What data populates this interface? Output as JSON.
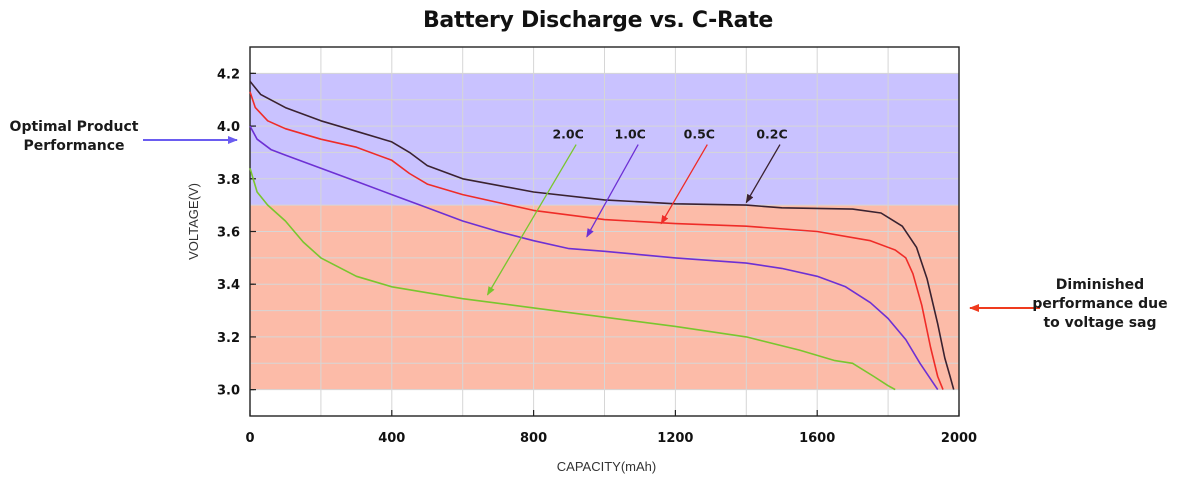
{
  "chart_data": {
    "type": "line",
    "title": "Battery Discharge vs. C-Rate",
    "xlabel": "CAPACITY(mAh)",
    "ylabel": "VOLTAGE(V)",
    "xlim": [
      0,
      2000
    ],
    "ylim": [
      2.9,
      4.3
    ],
    "x_ticks": [
      "0",
      "400",
      "800",
      "1200",
      "1600",
      "2000"
    ],
    "y_ticks": [
      "3.0",
      "3.2",
      "3.4",
      "3.6",
      "3.8",
      "4.0",
      "4.2"
    ],
    "grid": true,
    "bands": [
      {
        "label": "Optimal Product Performance",
        "y_range": [
          3.7,
          4.2
        ],
        "color": "#c9c2ff"
      },
      {
        "label": "Diminished performance due to voltage sag",
        "y_range": [
          3.0,
          3.7
        ],
        "color": "#fcbba8"
      }
    ],
    "series": [
      {
        "name": "0.2C",
        "color": "#3a2230",
        "points": [
          [
            0,
            4.17
          ],
          [
            30,
            4.12
          ],
          [
            100,
            4.07
          ],
          [
            200,
            4.02
          ],
          [
            300,
            3.98
          ],
          [
            400,
            3.94
          ],
          [
            450,
            3.9
          ],
          [
            500,
            3.85
          ],
          [
            600,
            3.8
          ],
          [
            800,
            3.75
          ],
          [
            1000,
            3.72
          ],
          [
            1200,
            3.705
          ],
          [
            1400,
            3.7
          ],
          [
            1500,
            3.69
          ],
          [
            1700,
            3.685
          ],
          [
            1780,
            3.67
          ],
          [
            1840,
            3.62
          ],
          [
            1880,
            3.54
          ],
          [
            1910,
            3.42
          ],
          [
            1940,
            3.25
          ],
          [
            1960,
            3.12
          ],
          [
            1975,
            3.05
          ],
          [
            1985,
            3.0
          ]
        ]
      },
      {
        "name": "0.5C",
        "color": "#ef2c28",
        "points": [
          [
            0,
            4.13
          ],
          [
            15,
            4.07
          ],
          [
            50,
            4.02
          ],
          [
            100,
            3.99
          ],
          [
            200,
            3.95
          ],
          [
            300,
            3.92
          ],
          [
            400,
            3.87
          ],
          [
            450,
            3.82
          ],
          [
            500,
            3.78
          ],
          [
            600,
            3.74
          ],
          [
            800,
            3.68
          ],
          [
            1000,
            3.645
          ],
          [
            1200,
            3.63
          ],
          [
            1400,
            3.62
          ],
          [
            1600,
            3.6
          ],
          [
            1750,
            3.565
          ],
          [
            1820,
            3.53
          ],
          [
            1850,
            3.5
          ],
          [
            1870,
            3.44
          ],
          [
            1895,
            3.32
          ],
          [
            1920,
            3.16
          ],
          [
            1940,
            3.05
          ],
          [
            1955,
            3.0
          ]
        ]
      },
      {
        "name": "1.0C",
        "color": "#6d30d4",
        "points": [
          [
            0,
            4.0
          ],
          [
            20,
            3.95
          ],
          [
            60,
            3.91
          ],
          [
            100,
            3.89
          ],
          [
            200,
            3.84
          ],
          [
            300,
            3.79
          ],
          [
            400,
            3.74
          ],
          [
            500,
            3.69
          ],
          [
            600,
            3.64
          ],
          [
            700,
            3.6
          ],
          [
            800,
            3.565
          ],
          [
            900,
            3.535
          ],
          [
            1000,
            3.525
          ],
          [
            1200,
            3.5
          ],
          [
            1400,
            3.48
          ],
          [
            1500,
            3.46
          ],
          [
            1600,
            3.43
          ],
          [
            1680,
            3.39
          ],
          [
            1750,
            3.33
          ],
          [
            1800,
            3.27
          ],
          [
            1850,
            3.19
          ],
          [
            1890,
            3.1
          ],
          [
            1920,
            3.04
          ],
          [
            1940,
            3.0
          ]
        ]
      },
      {
        "name": "2.0C",
        "color": "#79c62e",
        "points": [
          [
            0,
            3.84
          ],
          [
            20,
            3.75
          ],
          [
            50,
            3.7
          ],
          [
            100,
            3.64
          ],
          [
            150,
            3.56
          ],
          [
            200,
            3.5
          ],
          [
            300,
            3.43
          ],
          [
            400,
            3.39
          ],
          [
            600,
            3.345
          ],
          [
            800,
            3.31
          ],
          [
            1000,
            3.275
          ],
          [
            1200,
            3.24
          ],
          [
            1400,
            3.2
          ],
          [
            1550,
            3.15
          ],
          [
            1650,
            3.11
          ],
          [
            1700,
            3.1
          ],
          [
            1760,
            3.05
          ],
          [
            1800,
            3.015
          ],
          [
            1820,
            3.0
          ]
        ]
      }
    ],
    "annotations": [
      {
        "text": "2.0C",
        "series": "2.0C",
        "arrow_from": [
          920,
          3.93
        ],
        "arrow_to": [
          670,
          3.36
        ]
      },
      {
        "text": "1.0C",
        "series": "1.0C",
        "arrow_from": [
          1095,
          3.93
        ],
        "arrow_to": [
          950,
          3.58
        ]
      },
      {
        "text": "0.5C",
        "series": "0.5C",
        "arrow_from": [
          1290,
          3.93
        ],
        "arrow_to": [
          1160,
          3.63
        ]
      },
      {
        "text": "0.2C",
        "series": "0.2C",
        "arrow_from": [
          1495,
          3.93
        ],
        "arrow_to": [
          1400,
          3.71
        ]
      }
    ]
  },
  "side_annotations": {
    "optimal": "Optimal Product Performance",
    "diminished": "Diminished performance due to voltage sag"
  }
}
